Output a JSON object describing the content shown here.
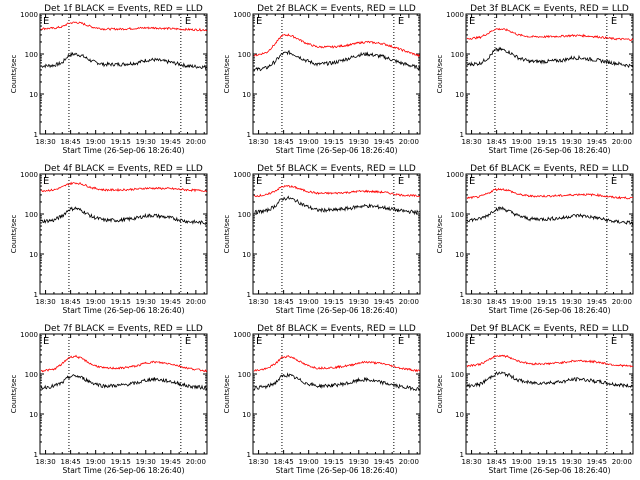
{
  "figure": {
    "title_suffix": "BLACK = Events, RED = LLD",
    "ylabel": "Counts/sec",
    "xlabel": "Start Time (26-Sep-06 18:26:40)",
    "xtick_labels": [
      "18:30",
      "18:45",
      "19:00",
      "19:15",
      "19:30",
      "19:45",
      "20:00"
    ],
    "ytick_labels": [
      "1",
      "10",
      "100",
      "1000"
    ],
    "event_marker": "E",
    "colors": {
      "events": "#000000",
      "lld": "#ff0000",
      "axes": "#000000"
    }
  },
  "chart_data": [
    {
      "type": "line",
      "title": "Det 1f BLACK = Events, RED = LLD",
      "xlabel": "Start Time (26-Sep-06 18:26:40)",
      "ylabel": "Counts/sec",
      "xlim": [
        "18:26:40",
        "20:06:40"
      ],
      "ylim": [
        1,
        1000
      ],
      "yscale": "log",
      "vertical_lines": [
        "18:44",
        "19:51"
      ],
      "series": [
        {
          "name": "Events",
          "x": [
            "18:27",
            "18:35",
            "18:40",
            "18:44",
            "18:48",
            "18:52",
            "18:58",
            "19:05",
            "19:15",
            "19:25",
            "19:30",
            "19:35",
            "19:45",
            "19:55",
            "20:06"
          ],
          "values": [
            50,
            52,
            60,
            95,
            100,
            90,
            65,
            55,
            55,
            60,
            70,
            72,
            62,
            50,
            47
          ]
        },
        {
          "name": "LLD",
          "x": [
            "18:27",
            "18:35",
            "18:40",
            "18:44",
            "18:48",
            "18:52",
            "18:58",
            "19:05",
            "19:15",
            "19:25",
            "19:30",
            "19:35",
            "19:45",
            "19:55",
            "20:06"
          ],
          "values": [
            430,
            440,
            480,
            590,
            620,
            580,
            470,
            420,
            420,
            440,
            450,
            450,
            430,
            410,
            400
          ]
        }
      ]
    },
    {
      "type": "line",
      "title": "Det 2f BLACK = Events, RED = LLD",
      "xlabel": "Start Time (26-Sep-06 18:26:40)",
      "ylabel": "Counts/sec",
      "xlim": [
        "18:26:40",
        "20:06:40"
      ],
      "ylim": [
        1,
        1000
      ],
      "yscale": "log",
      "vertical_lines": [
        "18:44",
        "19:51"
      ],
      "series": [
        {
          "name": "Events",
          "x": [
            "18:27",
            "18:35",
            "18:40",
            "18:44",
            "18:48",
            "18:52",
            "18:58",
            "19:05",
            "19:15",
            "19:25",
            "19:30",
            "19:35",
            "19:45",
            "19:55",
            "20:06"
          ],
          "values": [
            40,
            45,
            65,
            100,
            110,
            95,
            70,
            55,
            60,
            80,
            95,
            100,
            85,
            60,
            45
          ]
        },
        {
          "name": "LLD",
          "x": [
            "18:27",
            "18:35",
            "18:40",
            "18:44",
            "18:48",
            "18:52",
            "18:58",
            "19:05",
            "19:15",
            "19:25",
            "19:30",
            "19:35",
            "19:45",
            "19:55",
            "20:06"
          ],
          "values": [
            90,
            110,
            180,
            290,
            300,
            260,
            190,
            150,
            150,
            170,
            190,
            200,
            180,
            130,
            90
          ]
        }
      ]
    },
    {
      "type": "line",
      "title": "Det 3f BLACK = Events, RED = LLD",
      "xlabel": "Start Time (26-Sep-06 18:26:40)",
      "ylabel": "Counts/sec",
      "xlim": [
        "18:26:40",
        "20:06:40"
      ],
      "ylim": [
        1,
        1000
      ],
      "yscale": "log",
      "vertical_lines": [
        "18:44",
        "19:51"
      ],
      "series": [
        {
          "name": "Events",
          "x": [
            "18:27",
            "18:35",
            "18:40",
            "18:44",
            "18:48",
            "18:52",
            "18:58",
            "19:05",
            "19:15",
            "19:25",
            "19:30",
            "19:35",
            "19:45",
            "19:55",
            "20:06"
          ],
          "values": [
            55,
            58,
            80,
            125,
            130,
            115,
            80,
            65,
            65,
            70,
            80,
            80,
            70,
            60,
            50
          ]
        },
        {
          "name": "LLD",
          "x": [
            "18:27",
            "18:35",
            "18:40",
            "18:44",
            "18:48",
            "18:52",
            "18:58",
            "19:05",
            "19:15",
            "19:25",
            "19:30",
            "19:35",
            "19:45",
            "19:55",
            "20:06"
          ],
          "values": [
            240,
            260,
            330,
            420,
            420,
            390,
            300,
            270,
            270,
            280,
            290,
            290,
            270,
            240,
            230
          ]
        }
      ]
    },
    {
      "type": "line",
      "title": "Det 4f BLACK = Events, RED = LLD",
      "xlabel": "Start Time (26-Sep-06 18:26:40)",
      "ylabel": "Counts/sec",
      "xlim": [
        "18:26:40",
        "20:06:40"
      ],
      "ylim": [
        1,
        1000
      ],
      "yscale": "log",
      "vertical_lines": [
        "18:44",
        "19:51"
      ],
      "series": [
        {
          "name": "Events",
          "x": [
            "18:27",
            "18:35",
            "18:40",
            "18:44",
            "18:48",
            "18:52",
            "18:58",
            "19:05",
            "19:15",
            "19:25",
            "19:30",
            "19:35",
            "19:45",
            "19:55",
            "20:06"
          ],
          "values": [
            65,
            70,
            90,
            130,
            140,
            120,
            85,
            70,
            70,
            80,
            90,
            92,
            80,
            65,
            60
          ]
        },
        {
          "name": "LLD",
          "x": [
            "18:27",
            "18:35",
            "18:40",
            "18:44",
            "18:48",
            "18:52",
            "18:58",
            "19:05",
            "19:15",
            "19:25",
            "19:30",
            "19:35",
            "19:45",
            "19:55",
            "20:06"
          ],
          "values": [
            380,
            400,
            470,
            570,
            600,
            560,
            450,
            400,
            400,
            420,
            440,
            440,
            430,
            400,
            380
          ]
        }
      ]
    },
    {
      "type": "line",
      "title": "Det 5f BLACK = Events, RED = LLD",
      "xlabel": "Start Time (26-Sep-06 18:26:40)",
      "ylabel": "Counts/sec",
      "xlim": [
        "18:26:40",
        "20:06:40"
      ],
      "ylim": [
        1,
        1000
      ],
      "yscale": "log",
      "vertical_lines": [
        "18:44",
        "19:51"
      ],
      "series": [
        {
          "name": "Events",
          "x": [
            "18:27",
            "18:35",
            "18:40",
            "18:44",
            "18:48",
            "18:52",
            "18:58",
            "19:05",
            "19:15",
            "19:25",
            "19:30",
            "19:35",
            "19:45",
            "19:55",
            "20:06"
          ],
          "values": [
            110,
            120,
            160,
            240,
            250,
            220,
            160,
            125,
            125,
            140,
            155,
            160,
            145,
            120,
            110
          ]
        },
        {
          "name": "LLD",
          "x": [
            "18:27",
            "18:35",
            "18:40",
            "18:44",
            "18:48",
            "18:52",
            "18:58",
            "19:05",
            "19:15",
            "19:25",
            "19:30",
            "19:35",
            "19:45",
            "19:55",
            "20:06"
          ],
          "values": [
            280,
            300,
            380,
            480,
            500,
            460,
            380,
            330,
            330,
            350,
            370,
            370,
            350,
            300,
            280
          ]
        }
      ]
    },
    {
      "type": "line",
      "title": "Det 6f BLACK = Events, RED = LLD",
      "xlabel": "Start Time (26-Sep-06 18:26:40)",
      "ylabel": "Counts/sec",
      "xlim": [
        "18:26:40",
        "20:06:40"
      ],
      "ylim": [
        1,
        1000
      ],
      "yscale": "log",
      "vertical_lines": [
        "18:44",
        "19:51"
      ],
      "series": [
        {
          "name": "Events",
          "x": [
            "18:27",
            "18:35",
            "18:40",
            "18:44",
            "18:48",
            "18:52",
            "18:58",
            "19:05",
            "19:15",
            "19:25",
            "19:30",
            "19:35",
            "19:45",
            "19:55",
            "20:06"
          ],
          "values": [
            70,
            75,
            95,
            130,
            140,
            120,
            90,
            75,
            75,
            80,
            90,
            92,
            80,
            65,
            60
          ]
        },
        {
          "name": "LLD",
          "x": [
            "18:27",
            "18:35",
            "18:40",
            "18:44",
            "18:48",
            "18:52",
            "18:58",
            "19:05",
            "19:15",
            "19:25",
            "19:30",
            "19:35",
            "19:45",
            "19:55",
            "20:06"
          ],
          "values": [
            250,
            270,
            330,
            410,
            420,
            390,
            310,
            280,
            280,
            290,
            300,
            310,
            300,
            260,
            250
          ]
        }
      ]
    },
    {
      "type": "line",
      "title": "Det 7f BLACK = Events, RED = LLD",
      "xlabel": "Start Time (26-Sep-06 18:26:40)",
      "ylabel": "Counts/sec",
      "xlim": [
        "18:26:40",
        "20:06:40"
      ],
      "ylim": [
        1,
        1000
      ],
      "yscale": "log",
      "vertical_lines": [
        "18:44",
        "19:51"
      ],
      "series": [
        {
          "name": "Events",
          "x": [
            "18:27",
            "18:35",
            "18:40",
            "18:44",
            "18:48",
            "18:52",
            "18:58",
            "19:05",
            "19:15",
            "19:25",
            "19:30",
            "19:35",
            "19:45",
            "19:55",
            "20:06"
          ],
          "values": [
            45,
            50,
            60,
            85,
            90,
            80,
            60,
            50,
            52,
            60,
            70,
            75,
            65,
            50,
            45
          ]
        },
        {
          "name": "LLD",
          "x": [
            "18:27",
            "18:35",
            "18:40",
            "18:44",
            "18:48",
            "18:52",
            "18:58",
            "19:05",
            "19:15",
            "19:25",
            "19:30",
            "19:35",
            "19:45",
            "19:55",
            "20:06"
          ],
          "values": [
            120,
            130,
            180,
            260,
            280,
            240,
            170,
            140,
            140,
            160,
            190,
            200,
            180,
            140,
            120
          ]
        }
      ]
    },
    {
      "type": "line",
      "title": "Det 8f BLACK = Events, RED = LLD",
      "xlabel": "Start Time (26-Sep-06 18:26:40)",
      "ylabel": "Counts/sec",
      "xlim": [
        "18:26:40",
        "20:06:40"
      ],
      "ylim": [
        1,
        1000
      ],
      "yscale": "log",
      "vertical_lines": [
        "18:44",
        "19:51"
      ],
      "series": [
        {
          "name": "Events",
          "x": [
            "18:27",
            "18:35",
            "18:40",
            "18:44",
            "18:48",
            "18:52",
            "18:58",
            "19:05",
            "19:15",
            "19:25",
            "19:30",
            "19:35",
            "19:45",
            "19:55",
            "20:06"
          ],
          "values": [
            45,
            48,
            60,
            88,
            95,
            80,
            60,
            50,
            52,
            60,
            70,
            72,
            60,
            48,
            42
          ]
        },
        {
          "name": "LLD",
          "x": [
            "18:27",
            "18:35",
            "18:40",
            "18:44",
            "18:48",
            "18:52",
            "18:58",
            "19:05",
            "19:15",
            "19:25",
            "19:30",
            "19:35",
            "19:45",
            "19:55",
            "20:06"
          ],
          "values": [
            120,
            135,
            180,
            260,
            280,
            240,
            170,
            140,
            145,
            165,
            190,
            200,
            180,
            140,
            120
          ]
        }
      ]
    },
    {
      "type": "line",
      "title": "Det 9f BLACK = Events, RED = LLD",
      "xlabel": "Start Time (26-Sep-06 18:26:40)",
      "ylabel": "Counts/sec",
      "xlim": [
        "18:26:40",
        "20:06:40"
      ],
      "ylim": [
        1,
        1000
      ],
      "yscale": "log",
      "vertical_lines": [
        "18:44",
        "19:51"
      ],
      "series": [
        {
          "name": "Events",
          "x": [
            "18:27",
            "18:35",
            "18:40",
            "18:44",
            "18:48",
            "18:52",
            "18:58",
            "19:05",
            "19:15",
            "19:25",
            "19:30",
            "19:35",
            "19:45",
            "19:55",
            "20:06"
          ],
          "values": [
            50,
            55,
            75,
            100,
            105,
            95,
            70,
            60,
            60,
            65,
            72,
            75,
            65,
            55,
            50
          ]
        },
        {
          "name": "LLD",
          "x": [
            "18:27",
            "18:35",
            "18:40",
            "18:44",
            "18:48",
            "18:52",
            "18:58",
            "19:05",
            "19:15",
            "19:25",
            "19:30",
            "19:35",
            "19:45",
            "19:55",
            "20:06"
          ],
          "values": [
            160,
            175,
            220,
            280,
            290,
            270,
            210,
            180,
            180,
            195,
            210,
            215,
            200,
            170,
            155
          ]
        }
      ]
    }
  ]
}
